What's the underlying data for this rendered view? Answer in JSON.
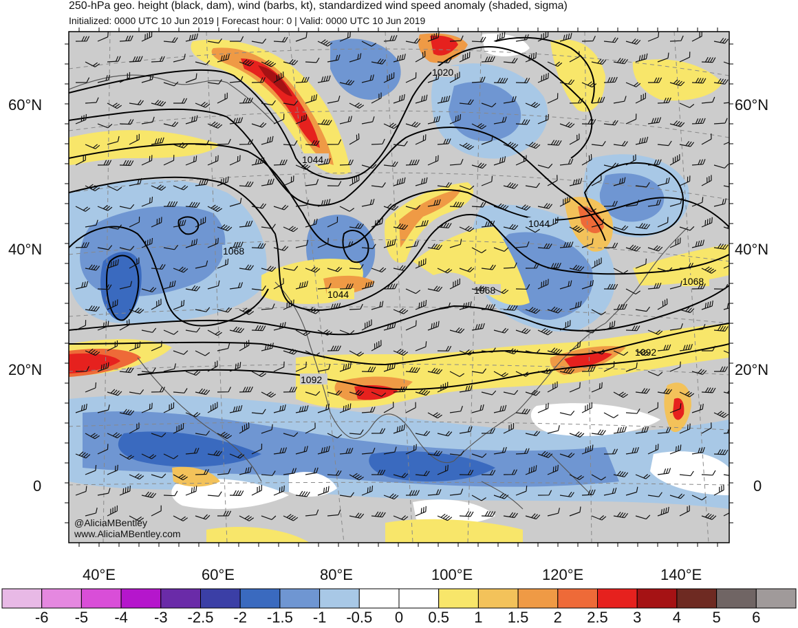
{
  "header": {
    "title": "250-hPa geo. height (black, dam), wind (barbs, kt), standardized wind speed anomaly (shaded, sigma)",
    "subtitle": "Initialized: 0000 UTC 10 Jun 2019 | Forecast hour: 0 | Valid: 0000 UTC 10 Jun 2019"
  },
  "map": {
    "lat_labels": [
      "60°N",
      "40°N",
      "20°N",
      "0"
    ],
    "lon_labels": [
      "40°E",
      "60°E",
      "80°E",
      "100°E",
      "120°E",
      "140°E"
    ],
    "contour_labels": [
      "1020",
      "1044",
      "1044",
      "1044",
      "1068",
      "1068",
      "1068",
      "1092",
      "1092"
    ],
    "credit_handle": "@AliciaMBentley",
    "credit_site": "www.AliciaMBentley.com"
  },
  "colorbar": {
    "labels": [
      "-6",
      "-5",
      "-4",
      "-3",
      "-2.5",
      "-2",
      "-1.5",
      "-1",
      "-0.5",
      "0",
      "0.5",
      "1",
      "1.5",
      "2",
      "2.5",
      "3",
      "4",
      "5",
      "6"
    ],
    "colors": [
      "#e8b9e6",
      "#e588e0",
      "#d94ed8",
      "#b516cc",
      "#6a2ba8",
      "#3b3fa6",
      "#3a6abf",
      "#6f96d2",
      "#a8c8e6",
      "#ffffff",
      "#ffffff",
      "#f8e66a",
      "#f3c25a",
      "#ef9a45",
      "#ee6a38",
      "#e6211e",
      "#a51214",
      "#6e2a22",
      "#706564",
      "#a09a9a"
    ]
  }
}
